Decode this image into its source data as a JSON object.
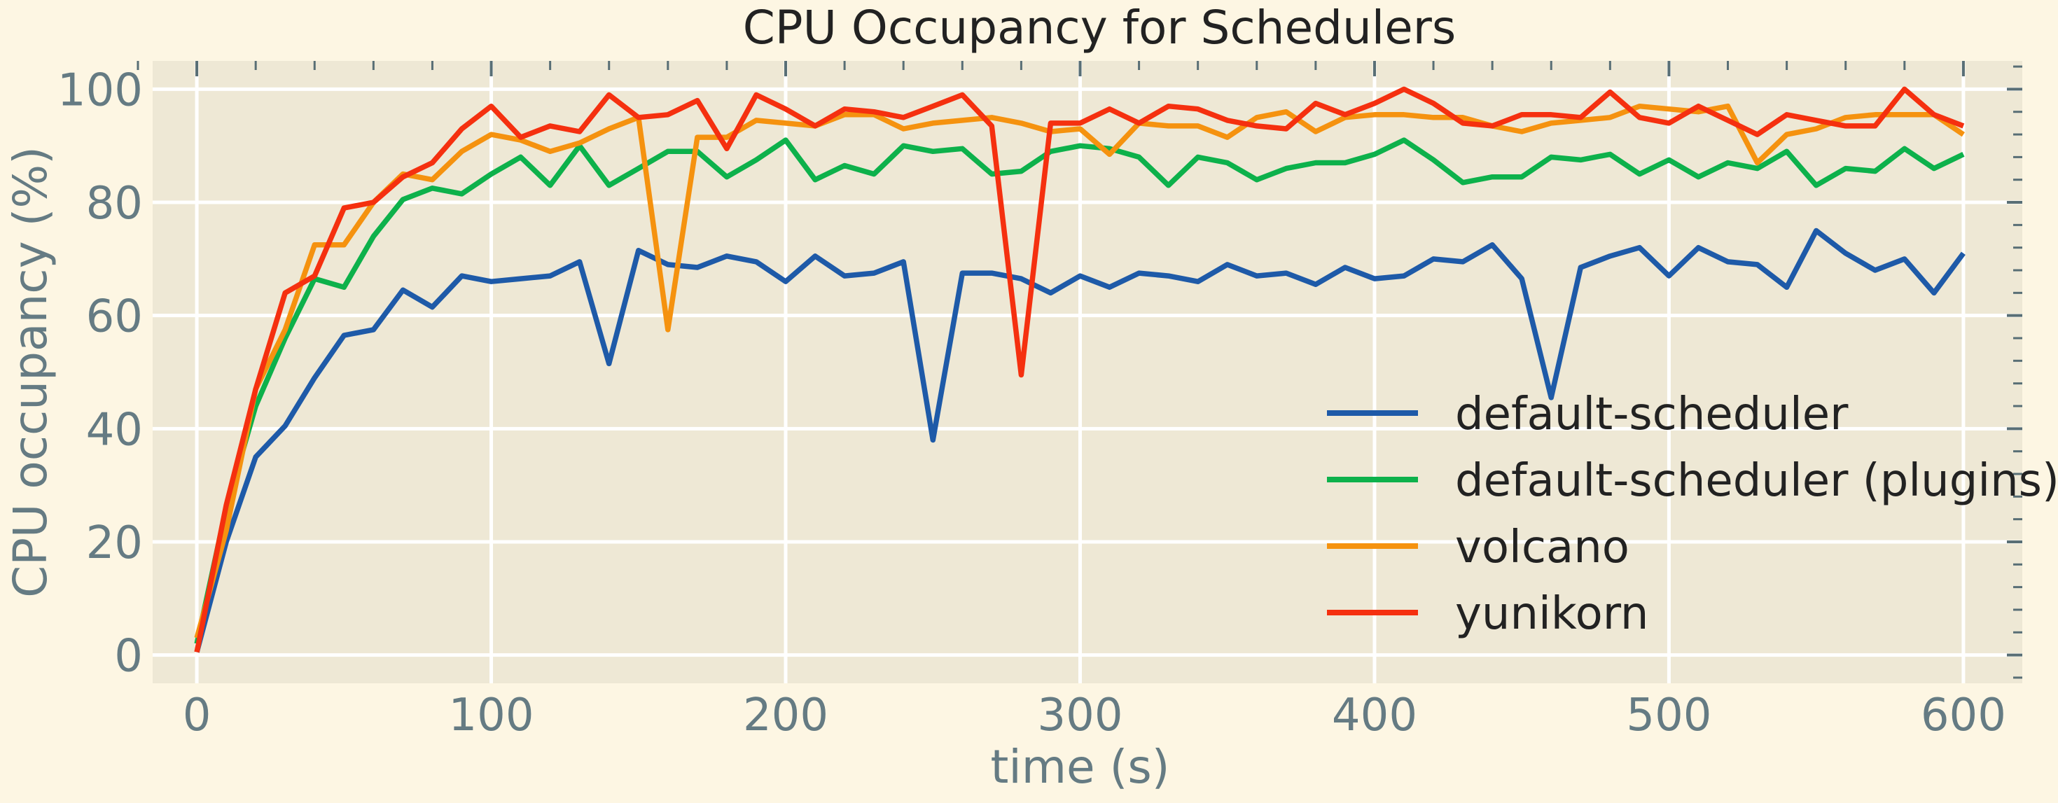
{
  "chart_data": {
    "type": "line",
    "title": "CPU Occupancy for Schedulers",
    "xlabel": "time (s)",
    "ylabel": "CPU occupancy (%)",
    "xlim": [
      -15,
      620
    ],
    "ylim": [
      -5,
      105
    ],
    "xticks": [
      0,
      100,
      200,
      300,
      400,
      500,
      600
    ],
    "yticks": [
      0,
      20,
      40,
      60,
      80,
      100
    ],
    "grid": true,
    "legend_position": "lower-right",
    "x": [
      0,
      10,
      20,
      30,
      40,
      50,
      60,
      70,
      80,
      90,
      100,
      110,
      120,
      130,
      140,
      150,
      160,
      170,
      180,
      190,
      200,
      210,
      220,
      230,
      240,
      250,
      260,
      270,
      280,
      290,
      300,
      310,
      320,
      330,
      340,
      350,
      360,
      370,
      380,
      390,
      400,
      410,
      420,
      430,
      440,
      450,
      460,
      470,
      480,
      490,
      500,
      510,
      520,
      530,
      540,
      550,
      560,
      570,
      580,
      590,
      600
    ],
    "series": [
      {
        "name": "default-scheduler",
        "color": "#1e5aa8",
        "values": [
          0.5,
          20,
          35,
          40.5,
          49,
          56.5,
          57.5,
          64.5,
          61.5,
          67,
          66,
          66.5,
          67,
          69.5,
          51.5,
          71.5,
          69,
          68.5,
          70.5,
          69.5,
          66,
          70.5,
          67,
          67.5,
          69.5,
          38,
          67.5,
          67.5,
          66.5,
          64,
          67,
          65,
          67.5,
          67,
          66,
          69,
          67,
          67.5,
          65.5,
          68.5,
          66.5,
          67,
          70,
          69.5,
          72.5,
          66.5,
          45.5,
          68.5,
          70.5,
          72,
          67,
          72,
          69.5,
          69,
          65,
          75,
          71,
          68,
          70,
          64,
          71
        ]
      },
      {
        "name": "default-scheduler (plugins)",
        "color": "#0db14b",
        "values": [
          2,
          26,
          44,
          56,
          66.5,
          65,
          74,
          80.5,
          82.5,
          81.5,
          85,
          88,
          83,
          90,
          83,
          86,
          89,
          89,
          84.5,
          87.5,
          91,
          84,
          86.5,
          85,
          90,
          89,
          89.5,
          85,
          85.5,
          89,
          90,
          89.5,
          88,
          83,
          88,
          87,
          84,
          86,
          87,
          87,
          88.5,
          91,
          87.5,
          83.5,
          84.5,
          84.5,
          88,
          87.5,
          88.5,
          85,
          87.5,
          84.5,
          87,
          86,
          89,
          83,
          86,
          85.5,
          89.5,
          86,
          88.5
        ]
      },
      {
        "name": "volcano",
        "color": "#f5920f",
        "values": [
          3,
          22,
          47,
          57.5,
          72.5,
          72.5,
          80,
          85,
          84,
          89,
          92,
          91,
          89,
          90.5,
          93,
          95,
          57.5,
          91.5,
          91.5,
          94.5,
          94,
          93.5,
          95.5,
          95.5,
          93,
          94,
          94.5,
          95,
          94,
          92.5,
          93,
          88.5,
          94,
          93.5,
          93.5,
          91.5,
          95,
          96,
          92.5,
          95,
          95.5,
          95.5,
          95,
          95,
          93.5,
          92.5,
          94,
          94.5,
          95,
          97,
          96.5,
          96,
          97,
          87,
          92,
          93,
          95,
          95.5,
          95.5,
          95.5,
          92
        ]
      },
      {
        "name": "yunikorn",
        "color": "#f5300f",
        "values": [
          0.5,
          26.5,
          47,
          64,
          67,
          79,
          80,
          84.5,
          87,
          93,
          97,
          91.5,
          93.5,
          92.5,
          99,
          95,
          95.5,
          98,
          89.5,
          99,
          96.5,
          93.5,
          96.5,
          96,
          95,
          97,
          99,
          93.5,
          49.5,
          94,
          94,
          96.5,
          94,
          97,
          96.5,
          94.5,
          93.5,
          93,
          97.5,
          95.5,
          97.5,
          100,
          97.5,
          94,
          93.5,
          95.5,
          95.5,
          95,
          99.5,
          95,
          94,
          97,
          94.5,
          92,
          95.5,
          94.5,
          93.5,
          93.5,
          100,
          95.5,
          93.5
        ]
      }
    ]
  }
}
